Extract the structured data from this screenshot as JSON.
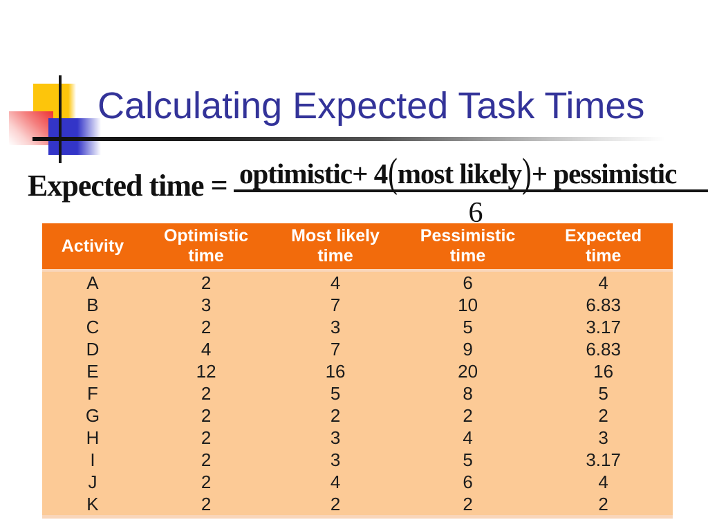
{
  "title": "Calculating Expected Task Times",
  "colors": {
    "title": "#333399",
    "header_bg": "#f26b0c",
    "header_text": "#ffffff",
    "body_bg": "#fcca96",
    "body_text": "#1c1c1c",
    "deco_yellow": "#fdc50b",
    "deco_pink": "#ee3133",
    "deco_blue": "#3335c8"
  },
  "formula": {
    "lhs": "Expected time =",
    "numerator_left": "optimistic+ 4",
    "paren_open": "(",
    "numerator_inside": "most likely",
    "paren_close": ")",
    "numerator_right": "+ pessimistic",
    "denominator": "6"
  },
  "table": {
    "headers": [
      [
        "Activity"
      ],
      [
        "Optimistic",
        "time"
      ],
      [
        "Most likely",
        "time"
      ],
      [
        "Pessimistic",
        "time"
      ],
      [
        "Expected",
        "time"
      ]
    ],
    "rows": [
      [
        "A",
        "2",
        "4",
        "6",
        "4"
      ],
      [
        "B",
        "3",
        "7",
        "10",
        "6.83"
      ],
      [
        "C",
        "2",
        "3",
        "5",
        "3.17"
      ],
      [
        "D",
        "4",
        "7",
        "9",
        "6.83"
      ],
      [
        "E",
        "12",
        "16",
        "20",
        "16"
      ],
      [
        "F",
        "2",
        "5",
        "8",
        "5"
      ],
      [
        "G",
        "2",
        "2",
        "2",
        "2"
      ],
      [
        "H",
        "2",
        "3",
        "4",
        "3"
      ],
      [
        "I",
        "2",
        "3",
        "5",
        "3.17"
      ],
      [
        "J",
        "2",
        "4",
        "6",
        "4"
      ],
      [
        "K",
        "2",
        "2",
        "2",
        "2"
      ]
    ]
  }
}
